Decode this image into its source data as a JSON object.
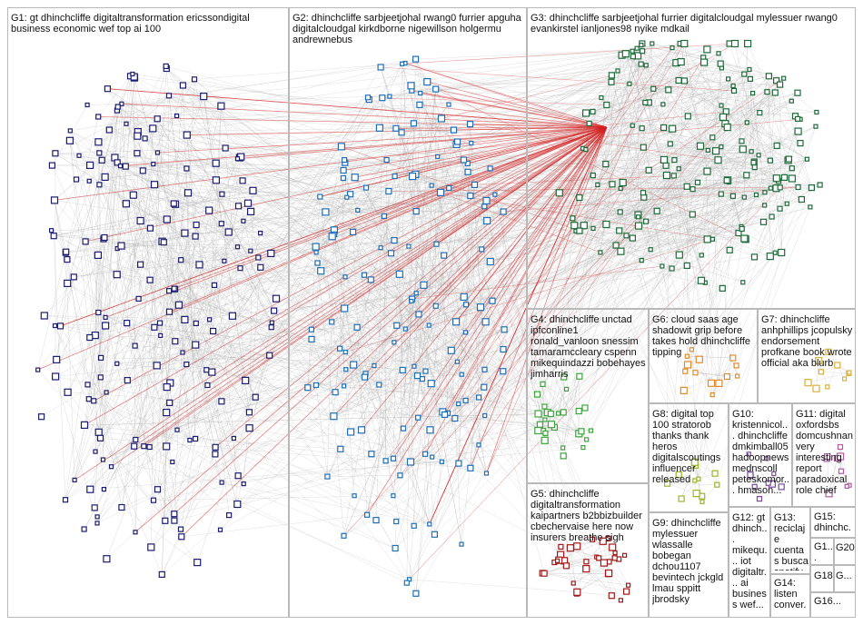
{
  "groups": [
    {
      "id": "G1",
      "label": "G1: gt dhinchcliffe digitaltransformation ericssondigital business economic wef top ai 100",
      "color": "#1b1d6e"
    },
    {
      "id": "G2",
      "label": "G2: dhinchcliffe sarbjeetjohal rwang0 furrier apguha digitalcloudgal kirkdborne nigewillson holgermu andrewnebus",
      "color": "#1f6fb4"
    },
    {
      "id": "G3",
      "label": "G3: dhinchcliffe sarbjeetjohal furrier digitalcloudgal mylessuer rwang0 evankirstel ianljones98 nyike mdkail",
      "color": "#1f6a3a"
    },
    {
      "id": "G4",
      "label": "G4: dhinchcliffe unctad ipfconline1 ronald_vanloon snessim tamaramccleary cspenn mikequindazzi bobehayes jimharris",
      "color": "#3aa63a"
    },
    {
      "id": "G5",
      "label": "G5: dhinchcliffe digitaltransformation kaipartners b2bbizbuilder cbechervaise here now insurers breathe sigh",
      "color": "#a01818"
    },
    {
      "id": "G6",
      "label": "G6: cloud saas age shadowit grip before takes hold dhinchcliffe tipping",
      "color": "#e08a2a"
    },
    {
      "id": "G7",
      "label": "G7: dhinchcliffe anhphillips jcopulsky endorsement profkane book wrote official aka blurb",
      "color": "#d9b13a"
    },
    {
      "id": "G8",
      "label": "G8: digital top 100 stratorob thanks thank heros digitalscoutings influencer released",
      "color": "#9ab52a"
    },
    {
      "id": "G9",
      "label": "G9: dhinchcliffe mylessuer wlassalle bobegan dchou1107 bevintech jckgld lmau sppitt jbrodsky",
      "color": "#555555"
    },
    {
      "id": "G10",
      "label": "G10: kristennicol... dhinchcliffe dmkimball05 hadoopnews mednscoll peteskomor... hmason...",
      "color": "#7a4a9a"
    },
    {
      "id": "G11",
      "label": "G11: digital oxfordsbs domcushnan very interesting report paradoxical role chief",
      "color": "#b05aa0"
    },
    {
      "id": "G12",
      "label": "G12: gt dhinch... mikequ... iot digitaltr... ai business wef...",
      "color": "#5a5a5a"
    },
    {
      "id": "G13",
      "label": "G13: reciclaje cuentas busca spotify...",
      "color": "#4a7ab0"
    },
    {
      "id": "G14",
      "label": "G14: listen conver...",
      "color": "#888888"
    },
    {
      "id": "G15",
      "label": "G15: dhinchc...",
      "color": "#666666"
    },
    {
      "id": "G16",
      "label": "G16...",
      "color": "#666666"
    },
    {
      "id": "G17",
      "label": "G1... 20...",
      "color": "#666666"
    },
    {
      "id": "G18",
      "label": "G18...",
      "color": "#666666"
    },
    {
      "id": "G19",
      "label": "G...",
      "color": "#666666"
    },
    {
      "id": "G20",
      "label": "G20",
      "color": "#666666"
    }
  ],
  "edge_colors": {
    "normal": "#b4b4b4",
    "highlight": "#d42020"
  },
  "node_fill": "#ffffff"
}
